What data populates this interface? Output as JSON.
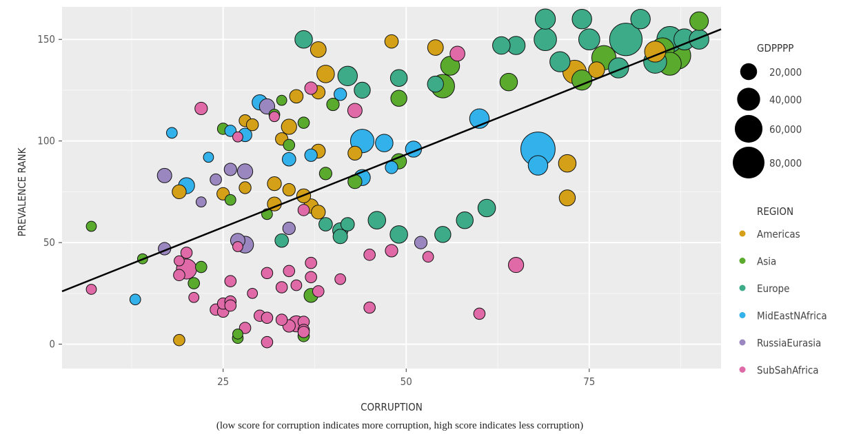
{
  "chart_data": {
    "type": "scatter",
    "xlabel": "CORRUPTION",
    "ylabel": "PREVALENCE RANK",
    "caption": "(low score for corruption indicates more corruption, high score indicates less corruption)",
    "xlim": [
      3,
      93
    ],
    "ylim": [
      -12,
      166
    ],
    "x_ticks": [
      25,
      50,
      75
    ],
    "y_ticks": [
      0,
      50,
      100,
      150
    ],
    "grid": true,
    "background": "#ececec",
    "trendline": {
      "x": [
        3,
        93
      ],
      "y": [
        26,
        155
      ]
    },
    "size_legend": {
      "title": "GDPPPP",
      "entries": [
        {
          "label": "20,000",
          "value": 20000
        },
        {
          "label": "40,000",
          "value": 40000
        },
        {
          "label": "60,000",
          "value": 60000
        },
        {
          "label": "80,000",
          "value": 80000
        }
      ]
    },
    "color_legend": {
      "title": "REGION",
      "entries": [
        {
          "label": "Americas",
          "color": "#d4a017"
        },
        {
          "label": "Asia",
          "color": "#5aaa2e"
        },
        {
          "label": "Europe",
          "color": "#3dab88"
        },
        {
          "label": "MidEastNAfrica",
          "color": "#33b1ea"
        },
        {
          "label": "RussiaEurasia",
          "color": "#9b87bf"
        },
        {
          "label": "SubSahAfrica",
          "color": "#e06aa8"
        }
      ]
    },
    "series": [
      {
        "name": "Americas",
        "points": [
          [
            48,
            149,
            12000
          ],
          [
            54,
            146,
            17000
          ],
          [
            38,
            145,
            17000
          ],
          [
            39,
            133,
            22000
          ],
          [
            38,
            124,
            12000
          ],
          [
            35,
            122,
            12000
          ],
          [
            28,
            110,
            9000
          ],
          [
            29,
            108,
            9000
          ],
          [
            34,
            107,
            16000
          ],
          [
            33,
            101,
            10000
          ],
          [
            38,
            95,
            13000
          ],
          [
            43,
            94,
            13000
          ],
          [
            72,
            89,
            22000
          ],
          [
            32,
            79,
            13000
          ],
          [
            28,
            77,
            9000
          ],
          [
            19,
            75,
            13000
          ],
          [
            25,
            74,
            10000
          ],
          [
            34,
            76,
            10000
          ],
          [
            36,
            73,
            13000
          ],
          [
            32,
            69,
            13000
          ],
          [
            37,
            68,
            14000
          ],
          [
            38,
            65,
            13000
          ],
          [
            72,
            72,
            18000
          ],
          [
            84,
            144,
            33000
          ],
          [
            73,
            134,
            42000
          ],
          [
            76,
            135,
            18000
          ],
          [
            19,
            2,
            8000
          ]
        ]
      },
      {
        "name": "Asia",
        "points": [
          [
            90,
            159,
            25000
          ],
          [
            55,
            127,
            42000
          ],
          [
            56,
            137,
            26000
          ],
          [
            49,
            121,
            18000
          ],
          [
            40,
            118,
            10000
          ],
          [
            36,
            109,
            8000
          ],
          [
            33,
            120,
            6000
          ],
          [
            34,
            98,
            8000
          ],
          [
            25,
            106,
            8000
          ],
          [
            26,
            71,
            7000
          ],
          [
            31,
            64,
            7000
          ],
          [
            39,
            84,
            10000
          ],
          [
            43,
            80,
            13000
          ],
          [
            49,
            90,
            16000
          ],
          [
            7,
            58,
            6000
          ],
          [
            14,
            42,
            6000
          ],
          [
            21,
            30,
            8000
          ],
          [
            22,
            38,
            8000
          ],
          [
            27,
            5,
            6000
          ],
          [
            27,
            3,
            7000
          ],
          [
            36,
            4,
            8000
          ],
          [
            37,
            24,
            13000
          ],
          [
            74,
            130,
            30000
          ],
          [
            77,
            141,
            45000
          ],
          [
            86,
            138,
            40000
          ],
          [
            87,
            142,
            58000
          ],
          [
            85,
            145,
            42000
          ],
          [
            64,
            129,
            22000
          ],
          [
            32,
            113,
            7000
          ]
        ]
      },
      {
        "name": "Europe",
        "points": [
          [
            69,
            160,
            30000
          ],
          [
            74,
            160,
            28000
          ],
          [
            82,
            160,
            28000
          ],
          [
            69,
            150,
            38000
          ],
          [
            75,
            150,
            33000
          ],
          [
            80,
            150,
            85000
          ],
          [
            86,
            150,
            52000
          ],
          [
            88,
            150,
            33000
          ],
          [
            90,
            150,
            28000
          ],
          [
            63,
            147,
            22000
          ],
          [
            65,
            147,
            24000
          ],
          [
            54,
            128,
            18000
          ],
          [
            71,
            139,
            30000
          ],
          [
            79,
            136,
            30000
          ],
          [
            84,
            139,
            40000
          ],
          [
            36,
            150,
            22000
          ],
          [
            42,
            132,
            28000
          ],
          [
            44,
            125,
            18000
          ],
          [
            49,
            131,
            20000
          ],
          [
            41,
            56,
            16000
          ],
          [
            41,
            53,
            14000
          ],
          [
            42,
            59,
            12000
          ],
          [
            39,
            59,
            12000
          ],
          [
            33,
            51,
            12000
          ],
          [
            46,
            61,
            22000
          ],
          [
            49,
            54,
            22000
          ],
          [
            55,
            54,
            18000
          ],
          [
            58,
            61,
            20000
          ],
          [
            61,
            67,
            22000
          ]
        ]
      },
      {
        "name": "MidEastNAfrica",
        "points": [
          [
            68,
            96,
            95000
          ],
          [
            44,
            100,
            42000
          ],
          [
            60,
            111,
            28000
          ],
          [
            47,
            99,
            22000
          ],
          [
            51,
            96,
            18000
          ],
          [
            44,
            82,
            18000
          ],
          [
            48,
            87,
            10000
          ],
          [
            41,
            123,
            10000
          ],
          [
            30,
            119,
            16000
          ],
          [
            28,
            103,
            12000
          ],
          [
            26,
            105,
            8000
          ],
          [
            18,
            104,
            7000
          ],
          [
            23,
            92,
            6000
          ],
          [
            34,
            91,
            12000
          ],
          [
            37,
            93,
            10000
          ],
          [
            20,
            78,
            18000
          ],
          [
            13,
            22,
            7000
          ],
          [
            68,
            88,
            28000
          ]
        ]
      },
      {
        "name": "RussiaEurasia",
        "points": [
          [
            31,
            117,
            16000
          ],
          [
            17,
            83,
            14000
          ],
          [
            24,
            81,
            8000
          ],
          [
            26,
            86,
            10000
          ],
          [
            28,
            85,
            16000
          ],
          [
            22,
            70,
            6000
          ],
          [
            27,
            51,
            14000
          ],
          [
            28,
            49,
            20000
          ],
          [
            34,
            57,
            10000
          ],
          [
            17,
            47,
            10000
          ],
          [
            52,
            50,
            10000
          ]
        ]
      },
      {
        "name": "SubSahAfrica",
        "points": [
          [
            57,
            143,
            15000
          ],
          [
            22,
            116,
            10000
          ],
          [
            43,
            115,
            14000
          ],
          [
            37,
            126,
            10000
          ],
          [
            32,
            112,
            6000
          ],
          [
            27,
            102,
            6000
          ],
          [
            36,
            66,
            8000
          ],
          [
            20,
            37,
            30000
          ],
          [
            19,
            41,
            6000
          ],
          [
            20,
            45,
            8000
          ],
          [
            19,
            34,
            8000
          ],
          [
            7,
            27,
            6000
          ],
          [
            21,
            23,
            6000
          ],
          [
            24,
            17,
            8000
          ],
          [
            25,
            16,
            8000
          ],
          [
            25,
            20,
            8000
          ],
          [
            26,
            21,
            8000
          ],
          [
            26,
            19,
            8000
          ],
          [
            26,
            31,
            8000
          ],
          [
            27,
            48,
            6000
          ],
          [
            29,
            25,
            6000
          ],
          [
            28,
            8,
            8000
          ],
          [
            30,
            14,
            8000
          ],
          [
            31,
            13,
            8000
          ],
          [
            31,
            35,
            8000
          ],
          [
            31,
            1,
            8000
          ],
          [
            33,
            28,
            8000
          ],
          [
            33,
            12,
            8000
          ],
          [
            34,
            9,
            10000
          ],
          [
            35,
            10,
            18000
          ],
          [
            36,
            11,
            8000
          ],
          [
            36,
            7,
            8000
          ],
          [
            36,
            6,
            8000
          ],
          [
            37,
            40,
            8000
          ],
          [
            37,
            33,
            8000
          ],
          [
            38,
            26,
            8000
          ],
          [
            35,
            29,
            7000
          ],
          [
            34,
            36,
            8000
          ],
          [
            41,
            32,
            7000
          ],
          [
            45,
            44,
            8000
          ],
          [
            45,
            18,
            8000
          ],
          [
            48,
            46,
            10000
          ],
          [
            53,
            43,
            7000
          ],
          [
            60,
            15,
            8000
          ],
          [
            65,
            39,
            16000
          ]
        ]
      }
    ]
  }
}
